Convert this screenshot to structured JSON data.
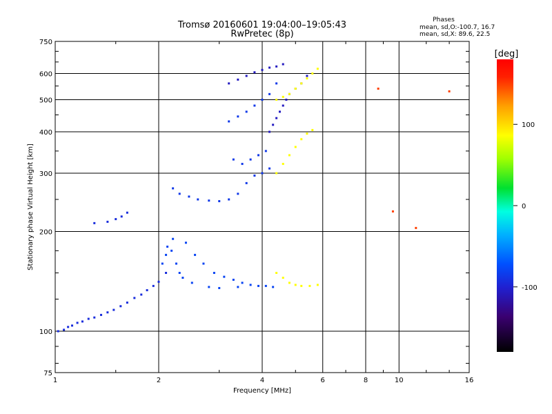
{
  "header": {
    "title_line1": "Tromsø 20160601 19:04:00–19:05:43",
    "title_line2": "RwPretec (8p)"
  },
  "stats": {
    "heading": "Phases",
    "line_o": "mean, sd,O:-100.7, 16.7",
    "line_x": "mean, sd,X:  89.6, 22.5"
  },
  "chart_data": {
    "type": "scatter",
    "title": "Tromsø 20160601 19:04:00–19:05:43",
    "subtitle": "RwPretec (8p)",
    "xlabel": "Frequency [MHz]",
    "ylabel": "Stationary phase Virtual Height [km]",
    "x_scale": "log",
    "y_scale": "log",
    "xlim": [
      1,
      16
    ],
    "ylim": [
      75,
      750
    ],
    "x_ticks": [
      1,
      2,
      4,
      6,
      8,
      10,
      16
    ],
    "x_tick_labels": [
      "1",
      "2",
      "4",
      "6",
      "8",
      "10",
      "16"
    ],
    "y_ticks": [
      75,
      100,
      200,
      300,
      400,
      500,
      600,
      750
    ],
    "y_tick_labels": [
      "75",
      "100",
      "200",
      "300",
      "400",
      "500",
      "600",
      "750"
    ],
    "grid": true,
    "colorbar": {
      "label": "[deg]",
      "range": [
        -180,
        180
      ],
      "ticks": [
        -100,
        0,
        100
      ],
      "tick_labels": [
        "-100",
        "0",
        "100"
      ]
    },
    "series": [
      {
        "phase_deg": -115,
        "points": [
          [
            1.02,
            100
          ],
          [
            1.06,
            101
          ],
          [
            1.09,
            103
          ],
          [
            1.12,
            104
          ],
          [
            1.16,
            106
          ],
          [
            1.2,
            107
          ],
          [
            1.25,
            109
          ],
          [
            1.3,
            110
          ],
          [
            1.36,
            112
          ],
          [
            1.42,
            114
          ],
          [
            1.48,
            116
          ],
          [
            1.55,
            119
          ],
          [
            1.62,
            122
          ],
          [
            1.7,
            126
          ],
          [
            1.78,
            129
          ],
          [
            1.85,
            133
          ],
          [
            1.93,
            137
          ],
          [
            2.0,
            141
          ],
          [
            2.1,
            150
          ],
          [
            1.3,
            212
          ],
          [
            1.42,
            214
          ],
          [
            1.5,
            218
          ],
          [
            1.56,
            222
          ],
          [
            1.62,
            228
          ]
        ]
      },
      {
        "phase_deg": -105,
        "points": [
          [
            2.05,
            160
          ],
          [
            2.1,
            170
          ],
          [
            2.12,
            180
          ],
          [
            2.18,
            175
          ],
          [
            2.25,
            160
          ],
          [
            2.3,
            150
          ],
          [
            2.35,
            145
          ],
          [
            2.2,
            190
          ],
          [
            2.4,
            185
          ],
          [
            2.55,
            170
          ],
          [
            2.7,
            160
          ],
          [
            2.9,
            150
          ],
          [
            3.1,
            146
          ],
          [
            3.3,
            143
          ],
          [
            3.5,
            140
          ],
          [
            3.7,
            138
          ],
          [
            3.9,
            137
          ],
          [
            4.1,
            137
          ],
          [
            4.3,
            136
          ],
          [
            2.5,
            140
          ],
          [
            2.8,
            136
          ],
          [
            3.0,
            135
          ],
          [
            3.4,
            136
          ]
        ]
      },
      {
        "phase_deg": -110,
        "points": [
          [
            2.2,
            270
          ],
          [
            2.3,
            260
          ],
          [
            2.45,
            255
          ],
          [
            2.6,
            250
          ],
          [
            2.8,
            248
          ],
          [
            3.0,
            247
          ],
          [
            3.2,
            250
          ],
          [
            3.4,
            260
          ],
          [
            3.6,
            280
          ],
          [
            3.8,
            295
          ],
          [
            4.0,
            300
          ],
          [
            4.2,
            310
          ],
          [
            3.3,
            330
          ],
          [
            3.5,
            320
          ],
          [
            3.7,
            330
          ],
          [
            3.9,
            340
          ],
          [
            4.1,
            350
          ],
          [
            3.2,
            430
          ],
          [
            3.4,
            445
          ],
          [
            3.6,
            460
          ],
          [
            3.8,
            480
          ],
          [
            4.0,
            500
          ],
          [
            4.2,
            520
          ],
          [
            4.4,
            560
          ]
        ]
      },
      {
        "phase_deg": -125,
        "points": [
          [
            3.2,
            560
          ],
          [
            3.4,
            575
          ],
          [
            3.6,
            590
          ],
          [
            3.8,
            605
          ],
          [
            4.0,
            615
          ],
          [
            4.2,
            625
          ],
          [
            4.4,
            630
          ],
          [
            4.6,
            640
          ],
          [
            4.2,
            400
          ],
          [
            4.3,
            420
          ],
          [
            4.4,
            440
          ],
          [
            4.5,
            460
          ],
          [
            4.6,
            480
          ],
          [
            4.7,
            500
          ],
          [
            4.8,
            520
          ],
          [
            5.0,
            540
          ],
          [
            5.2,
            560
          ],
          [
            5.4,
            590
          ]
        ]
      },
      {
        "phase_deg": 90,
        "points": [
          [
            4.4,
            500
          ],
          [
            4.6,
            510
          ],
          [
            4.8,
            520
          ],
          [
            5.0,
            540
          ],
          [
            5.2,
            560
          ],
          [
            5.4,
            580
          ],
          [
            5.6,
            600
          ],
          [
            5.8,
            620
          ],
          [
            4.4,
            300
          ],
          [
            4.6,
            320
          ],
          [
            4.8,
            340
          ],
          [
            5.0,
            360
          ],
          [
            5.2,
            380
          ],
          [
            5.4,
            395
          ],
          [
            5.6,
            405
          ],
          [
            4.4,
            150
          ],
          [
            4.6,
            145
          ],
          [
            4.8,
            140
          ],
          [
            5.0,
            138
          ],
          [
            5.2,
            137
          ],
          [
            5.5,
            137
          ],
          [
            5.8,
            138
          ]
        ]
      },
      {
        "phase_deg": 160,
        "points": [
          [
            8.7,
            540
          ],
          [
            9.6,
            230
          ],
          [
            11.2,
            205
          ],
          [
            14.0,
            530
          ]
        ]
      }
    ]
  }
}
